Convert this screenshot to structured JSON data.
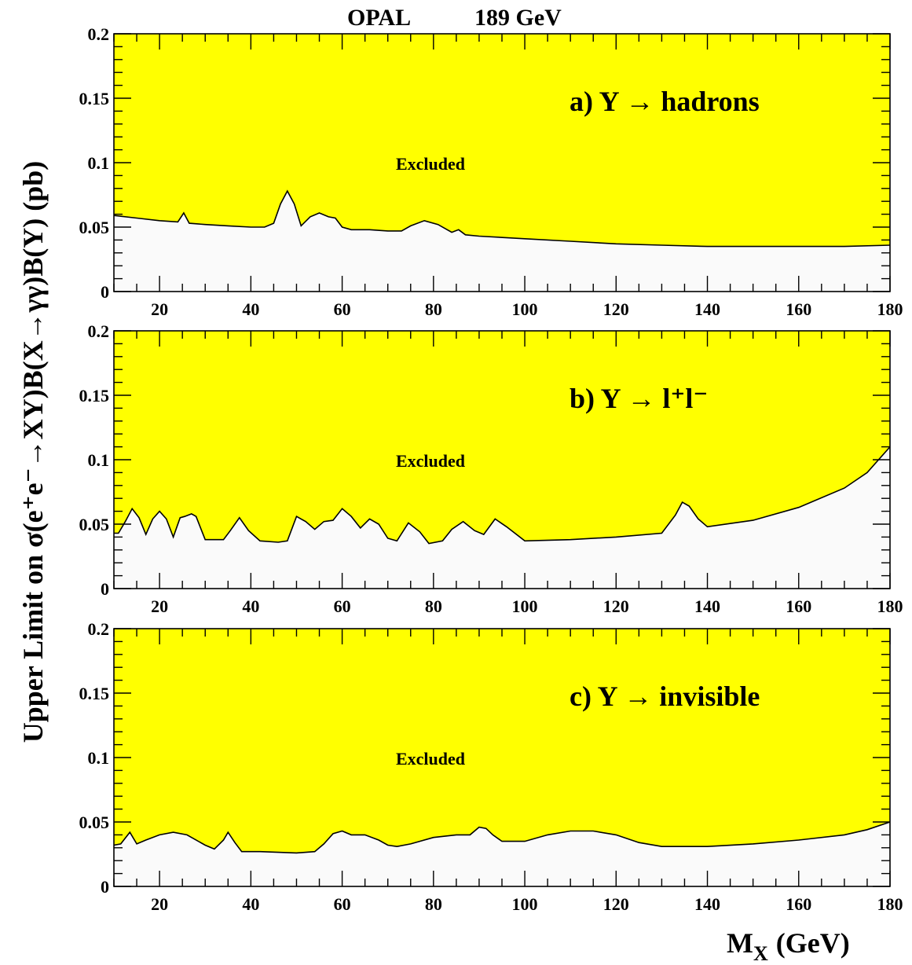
{
  "figure": {
    "title_left": "OPAL",
    "title_right": "189 GeV",
    "ylabel": "Upper Limit on σ(e⁺e⁻→XY)B(X→γγ)B(Y) (pb)",
    "xlabel": "M",
    "xlabel_sub": "X",
    "xlabel_unit": "(GeV)"
  },
  "colors": {
    "excluded": "#ffff00",
    "allowed": "#fafafa",
    "line": "#000000"
  },
  "chart_data": [
    {
      "type": "area",
      "panel_label": "a) Y → hadrons",
      "region_label": "Excluded",
      "xlim": [
        10,
        180
      ],
      "ylim": [
        0,
        0.2
      ],
      "xticks": [
        20,
        40,
        60,
        80,
        100,
        120,
        140,
        160,
        180
      ],
      "yticks": [
        0,
        0.05,
        0.1,
        0.15,
        0.2
      ],
      "ytick_labels": [
        "0",
        "0.05",
        "0.1",
        "0.15",
        "0.2"
      ],
      "x": [
        10,
        15,
        20,
        24,
        25.3,
        26.5,
        30,
        35,
        40,
        43,
        45,
        46.5,
        48,
        49.5,
        51,
        53,
        55,
        57,
        58.5,
        60,
        62,
        66,
        70,
        73,
        75,
        78,
        81,
        84,
        85.5,
        87,
        90,
        100,
        110,
        120,
        130,
        140,
        150,
        160,
        170,
        180
      ],
      "y": [
        0.059,
        0.057,
        0.055,
        0.054,
        0.061,
        0.053,
        0.052,
        0.051,
        0.05,
        0.05,
        0.053,
        0.068,
        0.078,
        0.068,
        0.051,
        0.058,
        0.061,
        0.058,
        0.057,
        0.05,
        0.048,
        0.048,
        0.047,
        0.047,
        0.051,
        0.055,
        0.052,
        0.046,
        0.048,
        0.044,
        0.043,
        0.041,
        0.039,
        0.037,
        0.036,
        0.035,
        0.035,
        0.035,
        0.035,
        0.036
      ]
    },
    {
      "type": "area",
      "panel_label": "b) Y → l⁺l⁻",
      "region_label": "Excluded",
      "xlim": [
        10,
        180
      ],
      "ylim": [
        0,
        0.2
      ],
      "xticks": [
        20,
        40,
        60,
        80,
        100,
        120,
        140,
        160,
        180
      ],
      "yticks": [
        0,
        0.05,
        0.1,
        0.15,
        0.2
      ],
      "ytick_labels": [
        "0",
        "0.05",
        "0.1",
        "0.15",
        "0.2"
      ],
      "x": [
        10,
        11,
        12.5,
        14,
        15.5,
        17,
        18.5,
        20,
        21.5,
        23,
        24.5,
        25.5,
        27,
        28,
        30,
        34,
        35.5,
        37.5,
        39.5,
        42,
        46,
        48,
        50,
        52,
        54,
        56,
        58,
        60,
        62,
        64,
        66,
        68,
        70,
        72,
        74.5,
        77,
        79,
        82,
        84,
        86.5,
        89,
        91,
        93.5,
        96,
        100,
        110,
        120,
        130,
        133,
        134.5,
        136,
        138,
        140,
        150,
        160,
        170,
        175,
        180
      ],
      "y": [
        0.043,
        0.043,
        0.052,
        0.062,
        0.055,
        0.042,
        0.054,
        0.06,
        0.054,
        0.04,
        0.055,
        0.056,
        0.058,
        0.056,
        0.038,
        0.038,
        0.045,
        0.055,
        0.045,
        0.037,
        0.036,
        0.037,
        0.056,
        0.052,
        0.046,
        0.052,
        0.053,
        0.062,
        0.056,
        0.047,
        0.054,
        0.05,
        0.039,
        0.037,
        0.051,
        0.044,
        0.035,
        0.037,
        0.046,
        0.052,
        0.045,
        0.042,
        0.054,
        0.048,
        0.037,
        0.038,
        0.04,
        0.043,
        0.057,
        0.067,
        0.064,
        0.054,
        0.048,
        0.053,
        0.063,
        0.078,
        0.09,
        0.11
      ]
    },
    {
      "type": "area",
      "panel_label": "c) Y → invisible",
      "region_label": "Excluded",
      "xlim": [
        10,
        180
      ],
      "ylim": [
        0,
        0.2
      ],
      "xticks": [
        20,
        40,
        60,
        80,
        100,
        120,
        140,
        160,
        180
      ],
      "yticks": [
        0,
        0.05,
        0.1,
        0.15,
        0.2
      ],
      "ytick_labels": [
        "0",
        "0.05",
        "0.1",
        "0.15",
        "0.2"
      ],
      "x": [
        10,
        11.5,
        13.5,
        15,
        17,
        20,
        23,
        26,
        30,
        32,
        34,
        35,
        36.5,
        38,
        42,
        50,
        54,
        56,
        58,
        60,
        62,
        65,
        68,
        70,
        72,
        75,
        80,
        85,
        88,
        90,
        91.5,
        93,
        95,
        100,
        105,
        110,
        115,
        120,
        125,
        130,
        140,
        150,
        160,
        170,
        175,
        180
      ],
      "y": [
        0.032,
        0.033,
        0.042,
        0.033,
        0.036,
        0.04,
        0.042,
        0.04,
        0.032,
        0.029,
        0.036,
        0.042,
        0.034,
        0.027,
        0.027,
        0.026,
        0.027,
        0.033,
        0.041,
        0.043,
        0.04,
        0.04,
        0.036,
        0.032,
        0.031,
        0.033,
        0.038,
        0.04,
        0.04,
        0.046,
        0.045,
        0.04,
        0.035,
        0.035,
        0.04,
        0.043,
        0.043,
        0.04,
        0.034,
        0.031,
        0.031,
        0.033,
        0.036,
        0.04,
        0.044,
        0.05
      ]
    }
  ]
}
